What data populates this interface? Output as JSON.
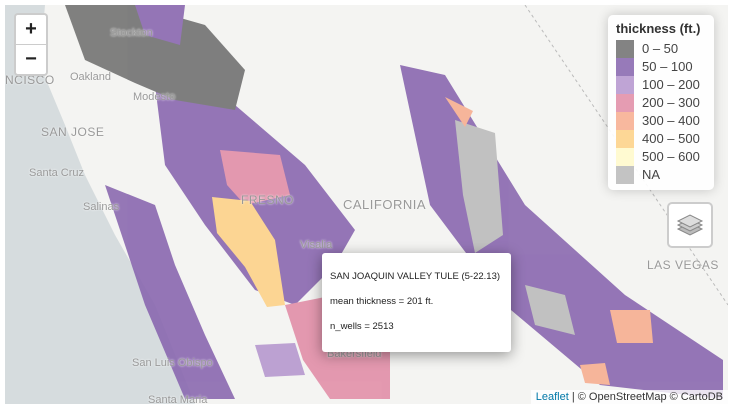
{
  "zoom": {
    "in": "+",
    "out": "−"
  },
  "map_labels": [
    "NCISCO",
    "Oakland",
    "Stockton",
    "Modesto",
    "SAN JOSE",
    "Santa Cruz",
    "Salinas",
    "FRESNO",
    "CALIFORNIA",
    "Visalia",
    "Bakersfield",
    "San Luis Obispo",
    "Santa Maria",
    "LAS VEGAS"
  ],
  "legend": {
    "title": "thickness (ft.)",
    "items": [
      {
        "label": "0 – 50",
        "color": "#757575"
      },
      {
        "label": "50 – 100",
        "color": "#8c6bb1"
      },
      {
        "label": "100 – 200",
        "color": "#b89ad0"
      },
      {
        "label": "200 – 300",
        "color": "#e291aa"
      },
      {
        "label": "300 – 400",
        "color": "#f7b093"
      },
      {
        "label": "400 – 500",
        "color": "#fdd38b"
      },
      {
        "label": "500 – 600",
        "color": "#fff9cc"
      },
      {
        "label": "NA",
        "color": "#bdbdbd"
      }
    ]
  },
  "popup": {
    "title": "SAN JOAQUIN VALLEY TULE (5-22.13)",
    "lines": [
      "mean thickness = 201 ft.",
      "n_wells = 2513"
    ]
  },
  "attribution": {
    "leaflet": "Leaflet",
    "rest": "| © OpenStreetMap © CartoDB"
  }
}
